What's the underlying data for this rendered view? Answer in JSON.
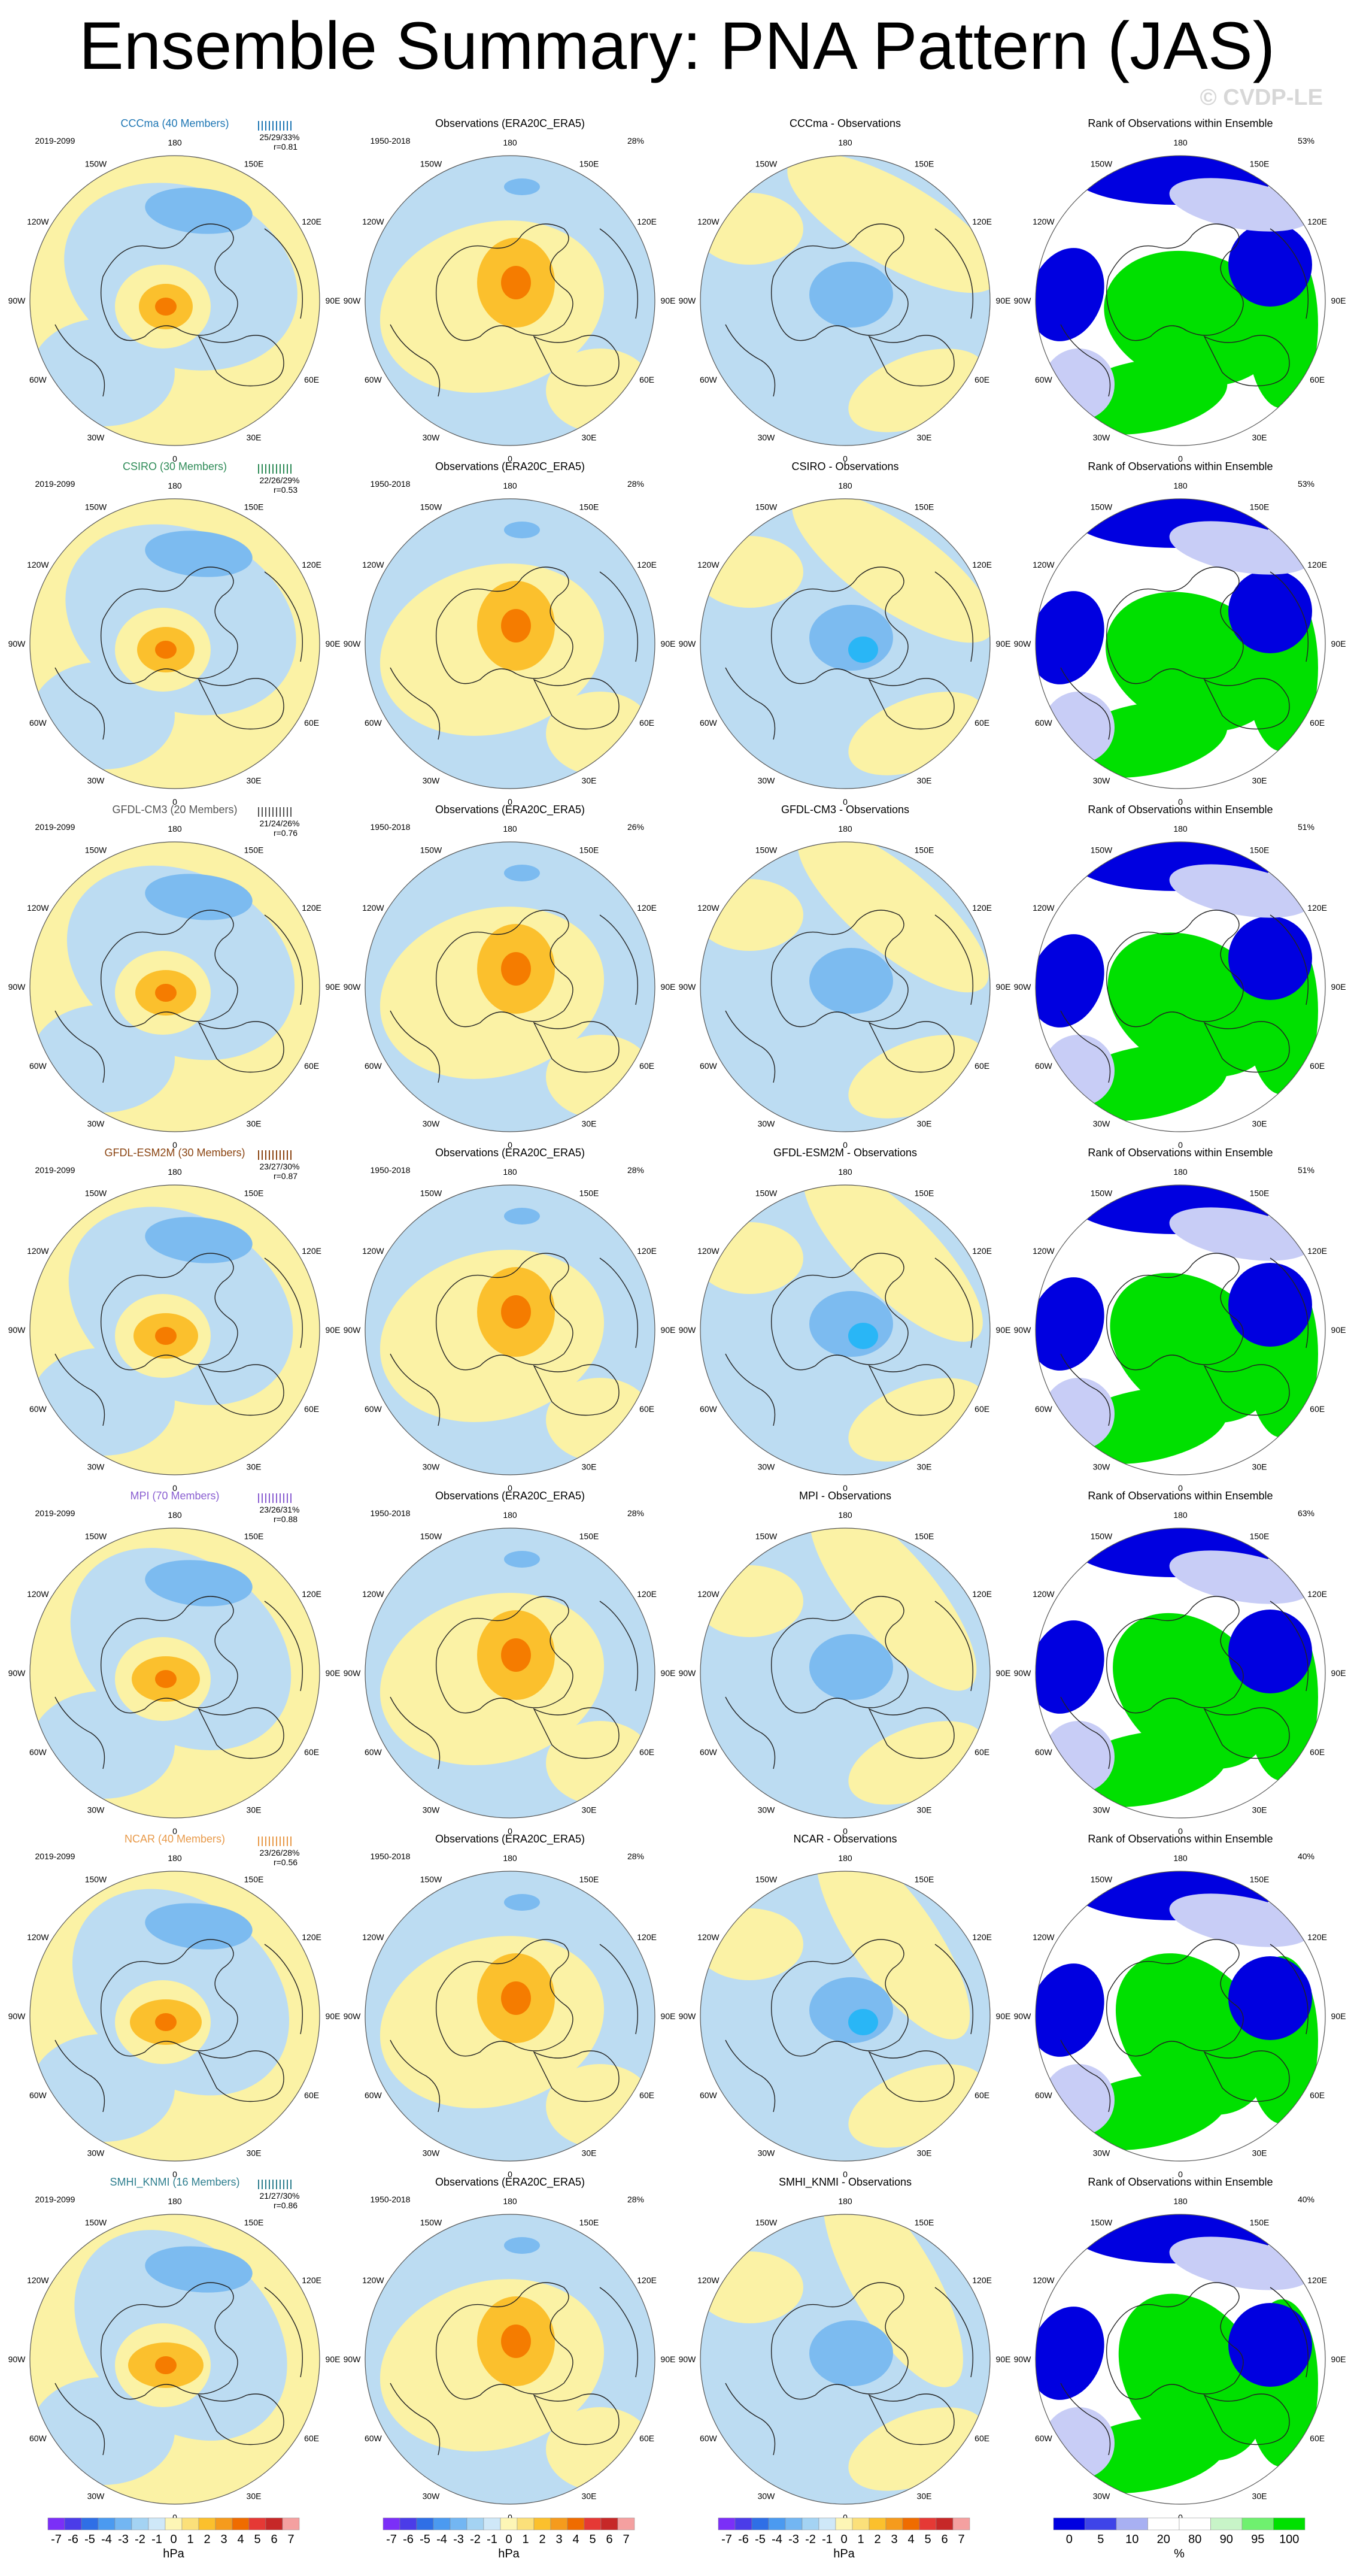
{
  "title": "Ensemble Summary: PNA Pattern (JAS)",
  "watermark": "© CVDP-LE",
  "colors": {
    "pos_light": "#fbf2a5",
    "neg_light": "#bcdcf2",
    "pos_mid": "#fbc02d",
    "pos_dark": "#f57c00",
    "neg_mid": "#7cbbf0",
    "neg_dark": "#29b6f6",
    "rank_low": "#0000e0",
    "rank_mid": "#c8cdf6",
    "rank_high": "#00e000",
    "land": "#222222"
  },
  "lon_labels": [
    "180",
    "150E",
    "120E",
    "90E",
    "60E",
    "30E",
    "0",
    "30W",
    "60W",
    "90W",
    "120W",
    "150W"
  ],
  "obs_title": "Observations (ERA20C_ERA5)",
  "obs_period": "1950-2018",
  "model_period": "2019-2099",
  "rank_title": "Rank of Observations within Ensemble",
  "rows": [
    {
      "model": "CCCma (40 Members)",
      "color": "#1f77b4",
      "stats": "25/29/33%",
      "r": "r=0.81",
      "obs_pct": "28%",
      "diff_title": "CCCma - Observations",
      "rank_pct": "53%"
    },
    {
      "model": "CSIRO (30 Members)",
      "color": "#2e8b57",
      "stats": "22/26/29%",
      "r": "r=0.53",
      "obs_pct": "28%",
      "diff_title": "CSIRO - Observations",
      "rank_pct": "53%"
    },
    {
      "model": "GFDL-CM3 (20 Members)",
      "color": "#555555",
      "stats": "21/24/26%",
      "r": "r=0.76",
      "obs_pct": "26%",
      "diff_title": "GFDL-CM3 - Observations",
      "rank_pct": "51%"
    },
    {
      "model": "GFDL-ESM2M (30 Members)",
      "color": "#8b4513",
      "stats": "23/27/30%",
      "r": "r=0.87",
      "obs_pct": "28%",
      "diff_title": "GFDL-ESM2M - Observations",
      "rank_pct": "51%"
    },
    {
      "model": "MPI (70 Members)",
      "color": "#8a5fd1",
      "stats": "23/26/31%",
      "r": "r=0.88",
      "obs_pct": "28%",
      "diff_title": "MPI - Observations",
      "rank_pct": "63%"
    },
    {
      "model": "NCAR (40 Members)",
      "color": "#e89a4a",
      "stats": "23/26/28%",
      "r": "r=0.56",
      "obs_pct": "28%",
      "diff_title": "NCAR - Observations",
      "rank_pct": "40%"
    },
    {
      "model": "SMHI_KNMI (16 Members)",
      "color": "#2f7f8f",
      "stats": "21/27/30%",
      "r": "r=0.86",
      "obs_pct": "28%",
      "diff_title": "SMHI_KNMI - Observations",
      "rank_pct": "40%"
    }
  ],
  "colorbar_hpa": {
    "labels": [
      "-7",
      "-6",
      "-5",
      "-4",
      "-3",
      "-2",
      "-1",
      "0",
      "1",
      "2",
      "3",
      "4",
      "5",
      "6",
      "7"
    ],
    "colors": [
      "#7b2ff7",
      "#4b3ce8",
      "#2f6fe6",
      "#4b9af0",
      "#73b6f2",
      "#a4d3f3",
      "#cfe8f8",
      "#fdf6b6",
      "#fbe07a",
      "#fbc02d",
      "#f59b1d",
      "#ef6c00",
      "#e53935",
      "#c62828",
      "#f4a0a0"
    ],
    "unit": "hPa"
  },
  "colorbar_rank": {
    "labels": [
      "0",
      "5",
      "10",
      "20",
      "80",
      "90",
      "95",
      "100"
    ],
    "colors": [
      "#0000e0",
      "#3e44e8",
      "#a8b0f2",
      "#ffffff",
      "#ffffff",
      "#c8f4c8",
      "#6ff06f",
      "#00e000"
    ],
    "unit": "%"
  }
}
